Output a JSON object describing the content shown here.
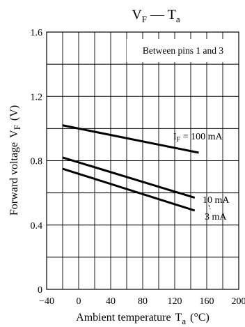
{
  "chart_data": {
    "type": "line",
    "title": {
      "main": "V",
      "main_sub": "F",
      "sep": " — ",
      "var": "T",
      "var_sub": "a"
    },
    "note": "Between pins 1 and 3",
    "xlabel": {
      "text": "Ambient temperature",
      "sym": "T",
      "sym_sub": "a",
      "unit": "(°C)"
    },
    "ylabel": {
      "text": "Forward voltage",
      "sym": "V",
      "sym_sub": "F",
      "unit": "(V)"
    },
    "xlim": [
      -40,
      200
    ],
    "ylim": [
      0,
      1.6
    ],
    "xticks": [
      -40,
      0,
      40,
      80,
      120,
      160,
      200
    ],
    "yticks": [
      0,
      0.4,
      0.8,
      1.2,
      1.6
    ],
    "x_minor_step": 20,
    "y_minor_step": 0.2,
    "grid": true,
    "series": [
      {
        "name": "IF = 100 mA",
        "label_main": "I",
        "label_sub": "F",
        "label_rest": " = 100 mA",
        "x": [
          -20,
          150
        ],
        "y": [
          1.02,
          0.85
        ]
      },
      {
        "name": "10 mA",
        "label_main": "10 mA",
        "label_sub": "",
        "label_rest": "",
        "x": [
          -20,
          145
        ],
        "y": [
          0.82,
          0.57
        ]
      },
      {
        "name": "3 mA",
        "label_main": "3 mA",
        "label_sub": "",
        "label_rest": "",
        "x": [
          -20,
          145
        ],
        "y": [
          0.75,
          0.49
        ]
      }
    ]
  }
}
